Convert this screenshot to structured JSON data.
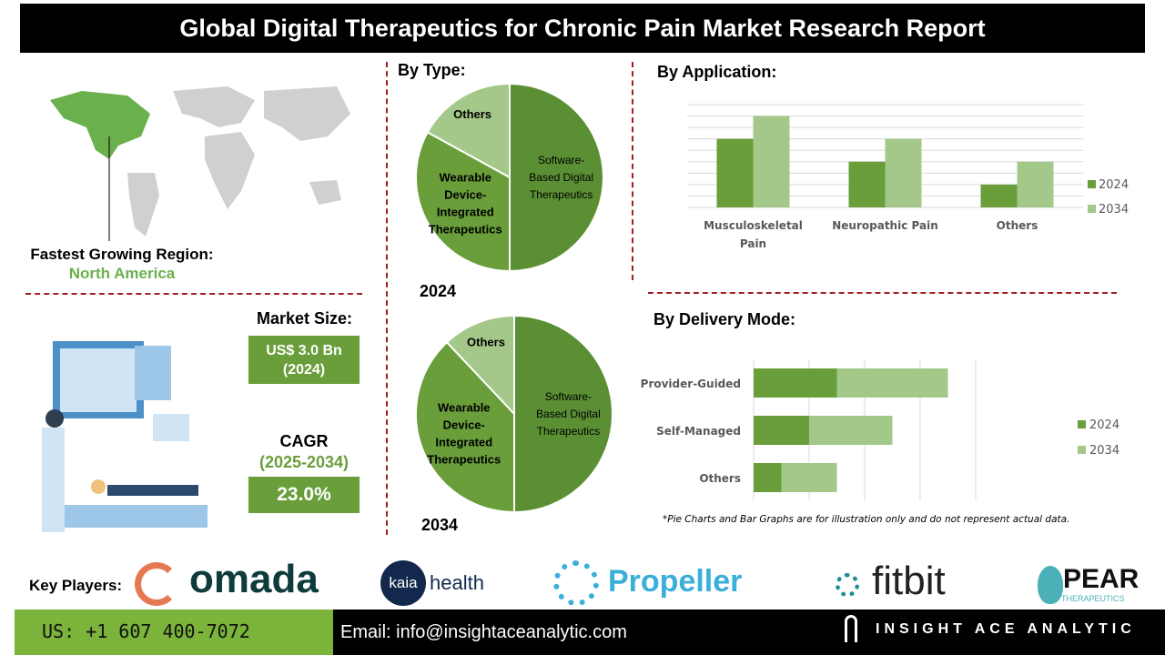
{
  "title": "Global Digital Therapeutics for Chronic Pain Market Research Report",
  "region": {
    "label": "Fastest Growing Region:",
    "value": "North America"
  },
  "market_size": {
    "label": "Market Size:",
    "value_line1": "US$ 3.0 Bn",
    "value_line2": "(2024)"
  },
  "cagr": {
    "label": "CAGR",
    "period": "(2025-2034)",
    "value": "23.0%"
  },
  "colors": {
    "dark_green": "#5b8f34",
    "mid_green": "#6a9e3b",
    "light_green": "#a3c88a",
    "accent_red": "#a31f24",
    "region_green": "#6ab04c"
  },
  "by_type": {
    "heading": "By Type:",
    "year_2024": "2024",
    "year_2034": "2034"
  },
  "by_application": {
    "heading": "By Application:"
  },
  "by_delivery": {
    "heading": "By Delivery Mode:"
  },
  "note": "*Pie Charts and Bar Graphs are for illustration only and do not represent actual data.",
  "chart_data": [
    {
      "type": "pie",
      "label": "2024",
      "slices": [
        {
          "name": "Software-Based Digital Therapeutics",
          "value": 50
        },
        {
          "name": "Wearable Device-Integrated Therapeutics",
          "value": 33
        },
        {
          "name": "Others",
          "value": 17
        }
      ]
    },
    {
      "type": "pie",
      "label": "2034",
      "slices": [
        {
          "name": "Software-Based Digital Therapeutics",
          "value": 50
        },
        {
          "name": "Wearable Device-Integrated Therapeutics",
          "value": 38
        },
        {
          "name": "Others",
          "value": 12
        }
      ]
    },
    {
      "type": "bar",
      "orientation": "vertical",
      "categories": [
        "Musculoskeletal Pain",
        "Neuropathic Pain",
        "Others"
      ],
      "series": [
        {
          "name": "2024",
          "values": [
            6,
            4,
            2
          ]
        },
        {
          "name": "2034",
          "values": [
            8,
            6,
            4
          ]
        }
      ],
      "ylim": [
        0,
        9
      ],
      "grid": true,
      "legend": "right"
    },
    {
      "type": "bar",
      "orientation": "horizontal",
      "stacked": true,
      "categories": [
        "Provider-Guided",
        "Self-Managed",
        "Others"
      ],
      "series": [
        {
          "name": "2024",
          "values": [
            3,
            2,
            1
          ]
        },
        {
          "name": "2034",
          "values": [
            4,
            3,
            2
          ]
        }
      ],
      "xlim": [
        0,
        8
      ],
      "grid": true,
      "legend": "right"
    }
  ],
  "footer": {
    "key_players_label": "Key Players:",
    "players": [
      "omada",
      "kaia",
      "health",
      "Propeller",
      "fitbit",
      "PEAR",
      "THERAPEUTICS"
    ],
    "phone": "US: +1 607 400-7072",
    "email": "Email: info@insightaceanalytic.com",
    "brand": "INSIGHT ACE ANALYTIC"
  }
}
